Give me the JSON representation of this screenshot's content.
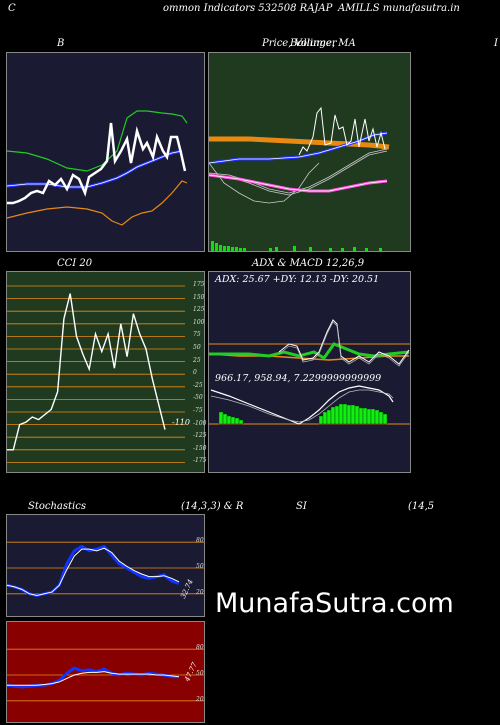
{
  "header": {
    "left": "C",
    "center": "ommon  Indicators 532508 RAJAP",
    "right": "AMILLS munafasutra.in"
  },
  "titles": {
    "bollinger": "B",
    "price": "Price,  Volume,  MA",
    "price_overlap": "Bollinger",
    "edge_letter": "I",
    "cci": "CCI 20",
    "adx_macd": "ADX  & MACD 12,26,9",
    "stoch_left": "Stochastics",
    "stoch_params": "(14,3,3) & R",
    "rsi": "SI",
    "rsi_params": "(14,5"
  },
  "readouts": {
    "adx": "ADX: 25.67 +DY: 12.13 -DY: 20.51",
    "macd": "966.17,  958.94,  7.2299999999999",
    "cci_value": "-110",
    "stoch_value": "32.74",
    "rsi_value": "47.77"
  },
  "cci_axis": [
    "175",
    "150",
    "125",
    "100",
    "75",
    "50",
    "25",
    "0",
    "-25",
    "-50",
    "-75",
    "-100",
    "-125",
    "-150",
    "-175"
  ],
  "stoch_axis": [
    "80",
    "50",
    "20"
  ],
  "rsi_axis": [
    "80",
    "50",
    "20"
  ],
  "watermark": "MunafaSutra.com",
  "colors": {
    "bollinger_bg": "#1a1a33",
    "price_bg": "#1f3a1f",
    "cci_bg": "#1f3a1f",
    "adx_bg": "#1a1a33",
    "stoch_bg": "#1a1a33",
    "rsi_bg": "#880000",
    "line_orange": "#e88a12",
    "line_green": "#22cc22",
    "line_blue": "#2233ff",
    "volume_green": "#11dd11"
  },
  "chart_data": [
    {
      "type": "line",
      "title": "B",
      "series": [
        {
          "values": [
            -0.9,
            -0.8,
            -0.8,
            -0.6,
            -0.5,
            -0.6,
            -0.5,
            -0.2,
            -0.4,
            -0.1,
            0.0,
            -0.2,
            0.0,
            -0.3,
            0.1,
            0.2,
            1.0,
            0.8,
            1.2,
            0.9,
            1.3,
            1.0,
            1.2,
            1.1,
            1.5,
            1.0,
            1.1,
            1.3,
            1.0,
            0.2
          ]
        }
      ]
    },
    {
      "type": "line",
      "title": "CCI 20",
      "ylim": [
        -175,
        175
      ],
      "series": [
        {
          "values": [
            -150,
            -150,
            -100,
            -95,
            -85,
            -90,
            -80,
            -70,
            -35,
            110,
            160,
            75,
            40,
            10,
            80,
            45,
            80,
            12,
            100,
            35,
            120,
            80,
            50,
            -10,
            -60,
            -110
          ]
        }
      ]
    },
    {
      "type": "line",
      "title": "Stochastics",
      "ylim": [
        0,
        100
      ],
      "series": [
        {
          "values": [
            30,
            28,
            25,
            20,
            18,
            20,
            22,
            30,
            55,
            70,
            75,
            70,
            72,
            75,
            65,
            55,
            50,
            45,
            40,
            38,
            40,
            42,
            35,
            32
          ]
        },
        {
          "values": [
            30,
            28,
            25,
            20,
            18,
            20,
            22,
            30,
            48,
            64,
            72,
            72,
            70,
            73,
            68,
            58,
            52,
            47,
            43,
            40,
            40,
            41,
            38,
            34
          ]
        }
      ]
    },
    {
      "type": "line",
      "title": "SI",
      "ylim": [
        0,
        100
      ],
      "series": [
        {
          "values": [
            38,
            37,
            36,
            37,
            38,
            38,
            40,
            44,
            52,
            58,
            55,
            56,
            54,
            57,
            52,
            50,
            52,
            51,
            50,
            52,
            51,
            50,
            48,
            48
          ]
        },
        {
          "values": [
            38,
            38,
            38,
            38,
            38,
            39,
            40,
            42,
            46,
            50,
            52,
            53,
            53,
            54,
            52,
            51,
            51,
            51,
            51,
            51,
            50,
            50,
            49,
            48
          ]
        }
      ]
    }
  ]
}
